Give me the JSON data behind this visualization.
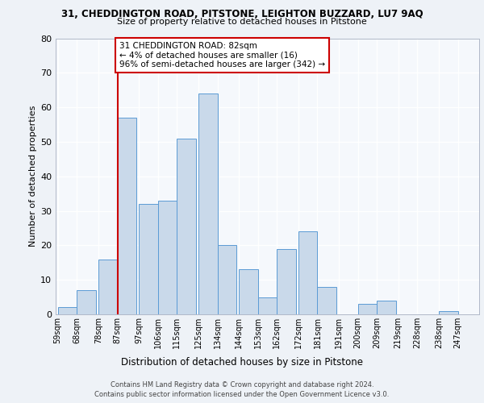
{
  "title_line1": "31, CHEDDINGTON ROAD, PITSTONE, LEIGHTON BUZZARD, LU7 9AQ",
  "title_line2": "Size of property relative to detached houses in Pitstone",
  "xlabel": "Distribution of detached houses by size in Pitstone",
  "ylabel": "Number of detached properties",
  "categories": [
    "59sqm",
    "68sqm",
    "78sqm",
    "87sqm",
    "97sqm",
    "106sqm",
    "115sqm",
    "125sqm",
    "134sqm",
    "144sqm",
    "153sqm",
    "162sqm",
    "172sqm",
    "181sqm",
    "191sqm",
    "200sqm",
    "209sqm",
    "219sqm",
    "228sqm",
    "238sqm",
    "247sqm"
  ],
  "values": [
    2,
    7,
    16,
    57,
    32,
    33,
    51,
    64,
    20,
    13,
    5,
    19,
    24,
    8,
    0,
    3,
    4,
    0,
    0,
    1,
    0
  ],
  "bar_color": "#c9d9ea",
  "bar_edge_color": "#5b9bd5",
  "annotation_text": "31 CHEDDINGTON ROAD: 82sqm\n← 4% of detached houses are smaller (16)\n96% of semi-detached houses are larger (342) →",
  "annotation_box_color": "white",
  "annotation_box_edge_color": "#cc0000",
  "property_line_color": "#cc0000",
  "ylim": [
    0,
    80
  ],
  "yticks": [
    0,
    10,
    20,
    30,
    40,
    50,
    60,
    70,
    80
  ],
  "footer1": "Contains HM Land Registry data © Crown copyright and database right 2024.",
  "footer2": "Contains public sector information licensed under the Open Government Licence v3.0.",
  "bg_color": "#eef2f7",
  "plot_bg_color": "#f5f8fc",
  "grid_color": "white",
  "bin_starts": [
    59,
    68,
    78,
    87,
    97,
    106,
    115,
    125,
    134,
    144,
    153,
    162,
    172,
    181,
    191,
    200,
    209,
    219,
    228,
    238,
    247
  ],
  "bin_width": 9
}
